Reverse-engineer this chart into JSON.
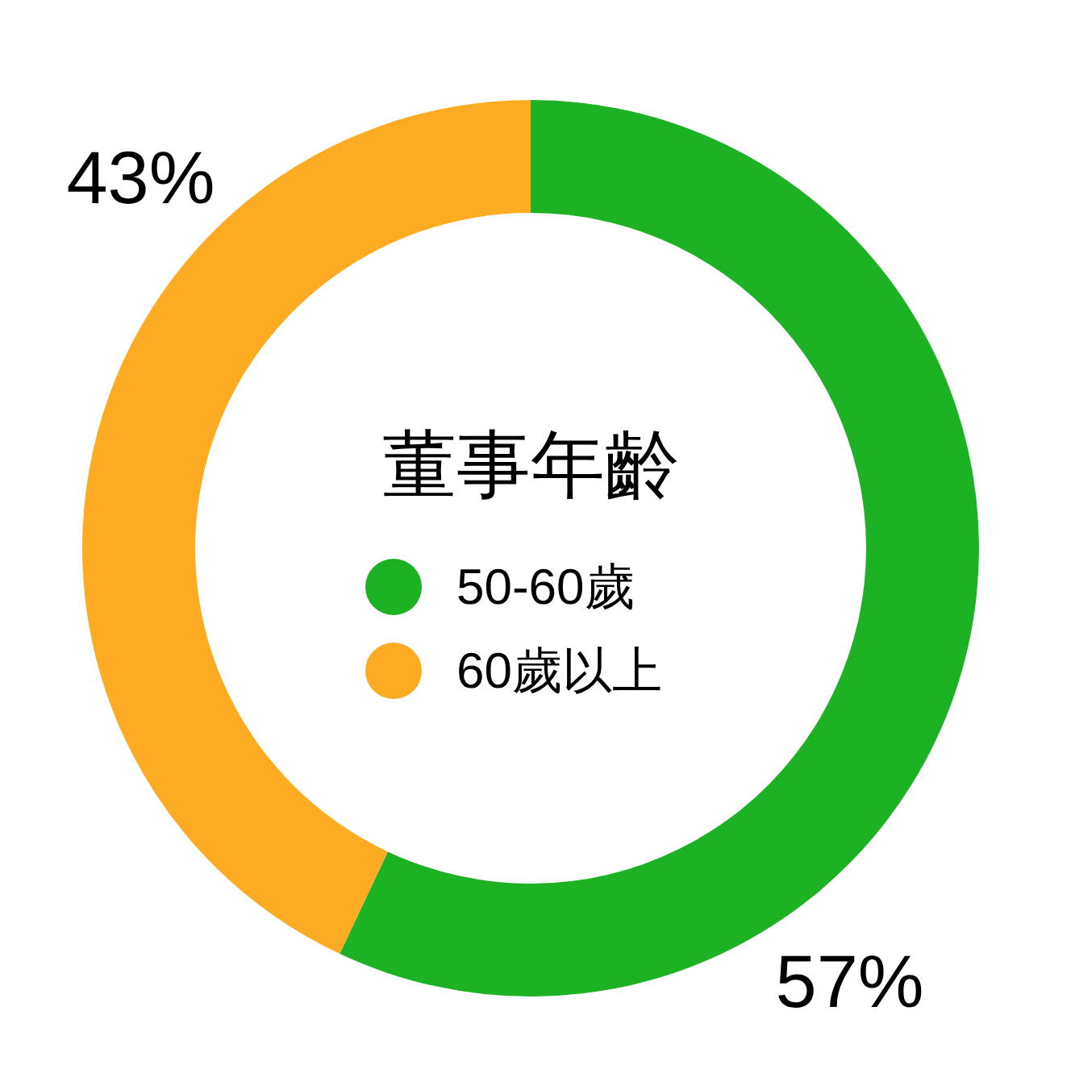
{
  "chart_data": {
    "type": "donut",
    "title": "董事年齡",
    "categories": [
      "50-60歲",
      "60歲以上"
    ],
    "values": [
      57,
      43
    ],
    "colors": [
      "#1db124",
      "#fcab22"
    ],
    "value_labels": [
      "57%",
      "43%"
    ],
    "legend": "center"
  }
}
